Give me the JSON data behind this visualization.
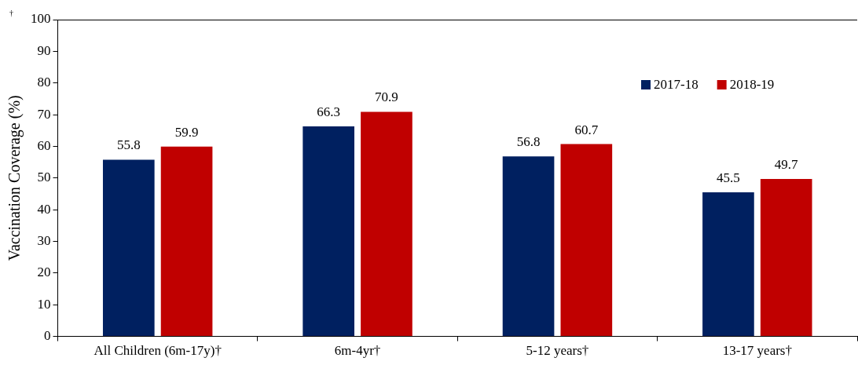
{
  "chart_data": {
    "type": "bar",
    "ylabel": "Vaccination Coverage (%)",
    "categories": [
      "All Children (6m-17y)†",
      "6m-4yr†",
      "5-12 years†",
      "13-17 years†"
    ],
    "series": [
      {
        "name": "2017-18",
        "color": "#002060",
        "values": [
          55.8,
          66.3,
          56.8,
          45.5
        ]
      },
      {
        "name": "2018-19",
        "color": "#c00000",
        "values": [
          59.9,
          70.9,
          60.7,
          49.7
        ]
      }
    ],
    "ylim": [
      0,
      100
    ],
    "yticks": [
      0,
      10,
      20,
      30,
      40,
      50,
      60,
      70,
      80,
      90,
      100
    ],
    "data_labels": true,
    "legend": "top right",
    "annotations": [
      "†"
    ]
  }
}
